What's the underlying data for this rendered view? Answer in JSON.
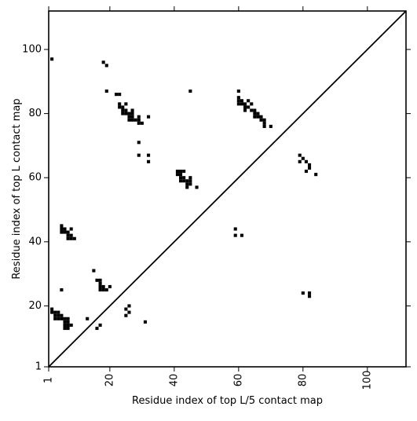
{
  "chart_data": {
    "type": "scatter",
    "title": "",
    "xlabel": "Residue index of top L/5 contact map",
    "ylabel": "Residue index of top L contact map",
    "xlim": [
      1,
      112
    ],
    "ylim": [
      1,
      112
    ],
    "x_ticks": [
      1,
      20,
      40,
      60,
      80,
      100
    ],
    "y_ticks": [
      1,
      20,
      40,
      60,
      80,
      100
    ],
    "x_tick_labels": [
      "1",
      "20",
      "40",
      "60",
      "80",
      "100"
    ],
    "y_tick_labels": [
      "1",
      "20",
      "40",
      "60",
      "80",
      "100"
    ],
    "grid": false,
    "legend": "none",
    "diagonal": true,
    "marker_color": "#000000",
    "series": [
      {
        "points": [
          [
            2,
            97
          ],
          [
            18,
            96
          ],
          [
            19,
            95
          ],
          [
            19,
            87
          ],
          [
            22,
            86
          ],
          [
            23,
            86
          ],
          [
            23,
            83
          ],
          [
            23,
            82
          ],
          [
            24,
            82
          ],
          [
            25,
            83
          ],
          [
            24,
            81
          ],
          [
            24,
            80
          ],
          [
            25,
            81
          ],
          [
            25,
            80
          ],
          [
            26,
            80
          ],
          [
            26,
            79
          ],
          [
            26,
            78
          ],
          [
            27,
            81
          ],
          [
            27,
            80
          ],
          [
            27,
            79
          ],
          [
            27,
            78
          ],
          [
            28,
            78
          ],
          [
            29,
            79
          ],
          [
            29,
            78
          ],
          [
            29,
            77
          ],
          [
            30,
            77
          ],
          [
            32,
            79
          ],
          [
            29,
            71
          ],
          [
            29,
            67
          ],
          [
            32,
            67
          ],
          [
            32,
            65
          ],
          [
            45,
            87
          ],
          [
            41,
            62
          ],
          [
            41,
            61
          ],
          [
            42,
            62
          ],
          [
            42,
            61
          ],
          [
            42,
            60
          ],
          [
            42,
            59
          ],
          [
            43,
            62
          ],
          [
            43,
            60
          ],
          [
            43,
            59
          ],
          [
            44,
            59
          ],
          [
            44,
            58
          ],
          [
            44,
            57
          ],
          [
            45,
            60
          ],
          [
            45,
            59
          ],
          [
            45,
            58
          ],
          [
            47,
            57
          ],
          [
            60,
            87
          ],
          [
            60,
            85
          ],
          [
            60,
            84
          ],
          [
            60,
            83
          ],
          [
            61,
            84
          ],
          [
            61,
            83
          ],
          [
            62,
            83
          ],
          [
            62,
            82
          ],
          [
            62,
            81
          ],
          [
            63,
            84
          ],
          [
            63,
            82
          ],
          [
            64,
            83
          ],
          [
            64,
            81
          ],
          [
            65,
            81
          ],
          [
            65,
            80
          ],
          [
            65,
            79
          ],
          [
            66,
            80
          ],
          [
            66,
            79
          ],
          [
            67,
            79
          ],
          [
            67,
            78
          ],
          [
            68,
            78
          ],
          [
            68,
            77
          ],
          [
            68,
            76
          ],
          [
            70,
            76
          ],
          [
            79,
            67
          ],
          [
            79,
            65
          ],
          [
            80,
            66
          ],
          [
            81,
            65
          ],
          [
            81,
            62
          ],
          [
            82,
            64
          ],
          [
            82,
            63
          ],
          [
            84,
            61
          ],
          [
            59,
            44
          ],
          [
            59,
            42
          ],
          [
            61,
            42
          ],
          [
            5,
            45
          ],
          [
            5,
            44
          ],
          [
            5,
            43
          ],
          [
            6,
            44
          ],
          [
            6,
            43
          ],
          [
            7,
            43
          ],
          [
            7,
            42
          ],
          [
            7,
            41
          ],
          [
            8,
            44
          ],
          [
            8,
            42
          ],
          [
            8,
            41
          ],
          [
            9,
            41
          ],
          [
            5,
            25
          ],
          [
            15,
            31
          ],
          [
            16,
            28
          ],
          [
            17,
            28
          ],
          [
            17,
            27
          ],
          [
            17,
            26
          ],
          [
            17,
            25
          ],
          [
            18,
            26
          ],
          [
            18,
            25
          ],
          [
            19,
            25
          ],
          [
            20,
            26
          ],
          [
            2,
            19
          ],
          [
            2,
            18
          ],
          [
            3,
            18
          ],
          [
            3,
            17
          ],
          [
            3,
            16
          ],
          [
            4,
            18
          ],
          [
            4,
            17
          ],
          [
            4,
            16
          ],
          [
            5,
            17
          ],
          [
            5,
            16
          ],
          [
            6,
            16
          ],
          [
            6,
            15
          ],
          [
            6,
            14
          ],
          [
            6,
            13
          ],
          [
            7,
            16
          ],
          [
            7,
            15
          ],
          [
            7,
            14
          ],
          [
            7,
            13
          ],
          [
            8,
            14
          ],
          [
            25,
            19
          ],
          [
            25,
            17
          ],
          [
            26,
            20
          ],
          [
            26,
            18
          ],
          [
            31,
            15
          ],
          [
            13,
            16
          ],
          [
            17,
            14
          ],
          [
            16,
            13
          ],
          [
            80,
            24
          ],
          [
            82,
            24
          ],
          [
            82,
            23
          ]
        ]
      }
    ]
  }
}
